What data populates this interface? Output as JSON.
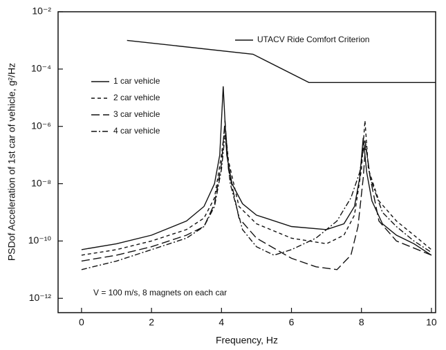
{
  "chart_data": {
    "type": "line",
    "x_label": "Frequency, Hz",
    "y_label": "PSDof Acceleration of 1st car of vehicle, g²/Hz",
    "annotation": "V = 100 m/s,    8 magnets on each car",
    "log_y": true,
    "xlim": [
      -0.67,
      10.12
    ],
    "ylim": [
      3.16e-13,
      0.01
    ],
    "xticks": [
      0,
      2,
      4,
      6,
      8,
      10
    ],
    "yticks": [
      {
        "value": 0.01,
        "label": "10⁻²"
      },
      {
        "value": 0.0001,
        "label": "10⁻⁴"
      },
      {
        "value": 1e-06,
        "label": "10⁻⁶"
      },
      {
        "value": 1e-08,
        "label": "10⁻⁸"
      },
      {
        "value": 1e-10,
        "label": "10⁻¹⁰"
      },
      {
        "value": 1e-12,
        "label": "10⁻¹²"
      }
    ],
    "series": [
      {
        "name": "UTACV Ride Comfort Criterion",
        "color": "#111111",
        "dash": "none",
        "x": [
          1.3,
          4.9,
          6.5,
          10.12
        ],
        "values": [
          0.001,
          0.00033,
          3.4e-05,
          3.4e-05
        ]
      },
      {
        "name": "1 car vehicle",
        "color": "#111111",
        "dash": "none",
        "x": [
          0,
          1,
          2,
          3,
          3.5,
          3.8,
          3.95,
          4.05,
          4.15,
          4.3,
          4.6,
          5,
          6,
          7,
          7.5,
          7.8,
          7.95,
          8.05,
          8.15,
          8.3,
          8.6,
          9,
          9.5,
          10
        ],
        "values": [
          5e-11,
          8e-11,
          1.6e-10,
          5e-10,
          1.6e-09,
          1e-08,
          1e-07,
          2.5e-05,
          1e-07,
          1e-08,
          2e-09,
          8e-10,
          3.2e-10,
          2.5e-10,
          4e-10,
          1.6e-09,
          1.6e-08,
          4e-07,
          2.5e-08,
          2.5e-09,
          4e-10,
          1.6e-10,
          8e-11,
          3.2e-11
        ]
      },
      {
        "name": "2 car vehicle",
        "color": "#111111",
        "dash": "5,4",
        "x": [
          0,
          1,
          2,
          3,
          3.5,
          3.8,
          4.0,
          4.1,
          4.2,
          4.5,
          5,
          6,
          7,
          7.5,
          7.8,
          8.0,
          8.1,
          8.2,
          8.5,
          9,
          9.5,
          10
        ],
        "values": [
          3.2e-11,
          5e-11,
          1e-10,
          2.5e-10,
          6.3e-10,
          3.2e-09,
          1e-07,
          1e-06,
          6.3e-08,
          1.6e-09,
          4e-10,
          1.26e-10,
          8e-11,
          1.6e-10,
          8e-10,
          3.2e-08,
          1.6e-06,
          3.2e-08,
          2.5e-09,
          5e-10,
          1.6e-10,
          5e-11
        ]
      },
      {
        "name": "3 car vehicle",
        "color": "#111111",
        "dash": "12,5",
        "x": [
          0,
          1,
          2,
          3,
          3.5,
          3.8,
          4.0,
          4.1,
          4.2,
          4.5,
          5,
          6,
          6.7,
          7.3,
          7.7,
          7.9,
          8.05,
          8.12,
          8.25,
          8.5,
          9,
          10
        ],
        "values": [
          2e-11,
          3.2e-11,
          6.3e-11,
          1.6e-10,
          3.2e-10,
          2e-09,
          5e-08,
          1.6e-06,
          3.2e-08,
          6.3e-10,
          1.26e-10,
          2.5e-11,
          1.26e-11,
          1e-11,
          3.2e-11,
          3.2e-10,
          1.6e-08,
          2.5e-07,
          1.6e-08,
          5e-10,
          1e-10,
          3.2e-11
        ]
      },
      {
        "name": "4 car vehicle",
        "color": "#111111",
        "dash": "8,3,2,3",
        "x": [
          0,
          1,
          2,
          3,
          3.5,
          3.8,
          4.0,
          4.1,
          4.25,
          4.6,
          5,
          5.5,
          6,
          6.7,
          7.3,
          7.7,
          7.95,
          8.1,
          8.25,
          8.6,
          9,
          9.5,
          10
        ],
        "values": [
          1e-11,
          2e-11,
          5e-11,
          1.26e-10,
          3.2e-10,
          1.6e-09,
          3.2e-08,
          5e-07,
          1e-08,
          2.5e-10,
          6.3e-11,
          3.2e-11,
          5e-11,
          1.26e-10,
          5e-10,
          3.2e-09,
          2.5e-08,
          3.2e-07,
          1.6e-08,
          1e-09,
          3.2e-10,
          1e-10,
          4e-11
        ]
      }
    ]
  }
}
